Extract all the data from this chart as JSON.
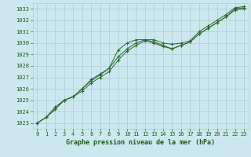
{
  "title": "",
  "xlabel": "Graphe pression niveau de la mer (hPa)",
  "xlim": [
    -0.5,
    23.5
  ],
  "ylim": [
    1022.5,
    1033.5
  ],
  "yticks": [
    1023,
    1024,
    1025,
    1026,
    1027,
    1028,
    1029,
    1030,
    1031,
    1032,
    1033
  ],
  "xticks": [
    0,
    1,
    2,
    3,
    4,
    5,
    6,
    7,
    8,
    9,
    10,
    11,
    12,
    13,
    14,
    15,
    16,
    17,
    18,
    19,
    20,
    21,
    22,
    23
  ],
  "background_color": "#cce8ee",
  "grid_color": "#aacccc",
  "line_color": "#2d6a2d",
  "line1": [
    1023.0,
    1023.5,
    1024.4,
    1025.0,
    1025.3,
    1026.0,
    1026.8,
    1027.3,
    1027.8,
    1029.4,
    1030.0,
    1030.3,
    1030.3,
    1030.3,
    1030.0,
    1029.9,
    1030.0,
    1030.2,
    1031.0,
    1031.5,
    1032.0,
    1032.5,
    1033.1,
    1033.2
  ],
  "line2": [
    1023.0,
    1023.5,
    1024.2,
    1025.0,
    1025.3,
    1026.0,
    1026.7,
    1027.2,
    1027.8,
    1028.8,
    1029.5,
    1030.0,
    1030.3,
    1030.1,
    1029.8,
    1029.5,
    1029.8,
    1030.1,
    1030.8,
    1031.3,
    1031.8,
    1032.3,
    1032.9,
    1033.0
  ],
  "line3": [
    1023.0,
    1023.5,
    1024.2,
    1025.0,
    1025.3,
    1025.8,
    1026.5,
    1027.0,
    1027.5,
    1028.5,
    1029.3,
    1029.8,
    1030.2,
    1030.0,
    1029.7,
    1029.5,
    1029.8,
    1030.1,
    1030.8,
    1031.3,
    1031.8,
    1032.3,
    1033.0,
    1033.1
  ],
  "font_color": "#1a5c1a",
  "xlabel_fontsize": 6,
  "tick_fontsize": 5,
  "linewidth": 0.7,
  "marker": "+"
}
